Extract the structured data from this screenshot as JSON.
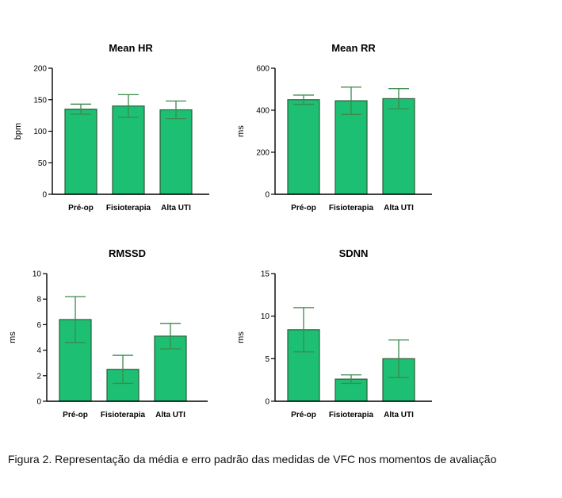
{
  "caption": "Figura 2. Representação da média e erro padrão das medidas de VFC nos momentos de avaliação",
  "colors": {
    "bar_fill": "#1dbf73",
    "bar_stroke": "#2b5e3a",
    "error_bar": "#3d8a4c",
    "axis": "#000000"
  },
  "chart_data": [
    {
      "type": "bar",
      "title": "Mean HR",
      "ylabel": "bpm",
      "xlabel": "",
      "categories": [
        "Pré-op",
        "Fisioterapia",
        "Alta UTI"
      ],
      "values": [
        135,
        140,
        134
      ],
      "errors": [
        8,
        18,
        14
      ],
      "ylim": [
        0,
        200
      ],
      "yticks": [
        0,
        50,
        100,
        150,
        200
      ],
      "grid": false
    },
    {
      "type": "bar",
      "title": "Mean RR",
      "ylabel": "ms",
      "xlabel": "",
      "categories": [
        "Pré-op",
        "Fisioterapia",
        "Alta UTI"
      ],
      "values": [
        450,
        445,
        455
      ],
      "errors": [
        22,
        65,
        48
      ],
      "ylim": [
        0,
        600
      ],
      "yticks": [
        0,
        200,
        400,
        600
      ],
      "grid": false
    },
    {
      "type": "bar",
      "title": "RMSSD",
      "ylabel": "ms",
      "xlabel": "",
      "categories": [
        "Pré-op",
        "Fisioterapia",
        "Alta UTI"
      ],
      "values": [
        6.4,
        2.5,
        5.1
      ],
      "errors": [
        1.8,
        1.1,
        1.0
      ],
      "ylim": [
        0,
        10
      ],
      "yticks": [
        0,
        2,
        4,
        6,
        8,
        10
      ],
      "grid": false
    },
    {
      "type": "bar",
      "title": "SDNN",
      "ylabel": "ms",
      "xlabel": "",
      "categories": [
        "Pré-op",
        "Fisioterapia",
        "Alta UTI"
      ],
      "values": [
        8.4,
        2.6,
        5.0
      ],
      "errors": [
        2.6,
        0.5,
        2.2
      ],
      "ylim": [
        0,
        15
      ],
      "yticks": [
        0,
        5,
        10,
        15
      ],
      "grid": false
    }
  ]
}
